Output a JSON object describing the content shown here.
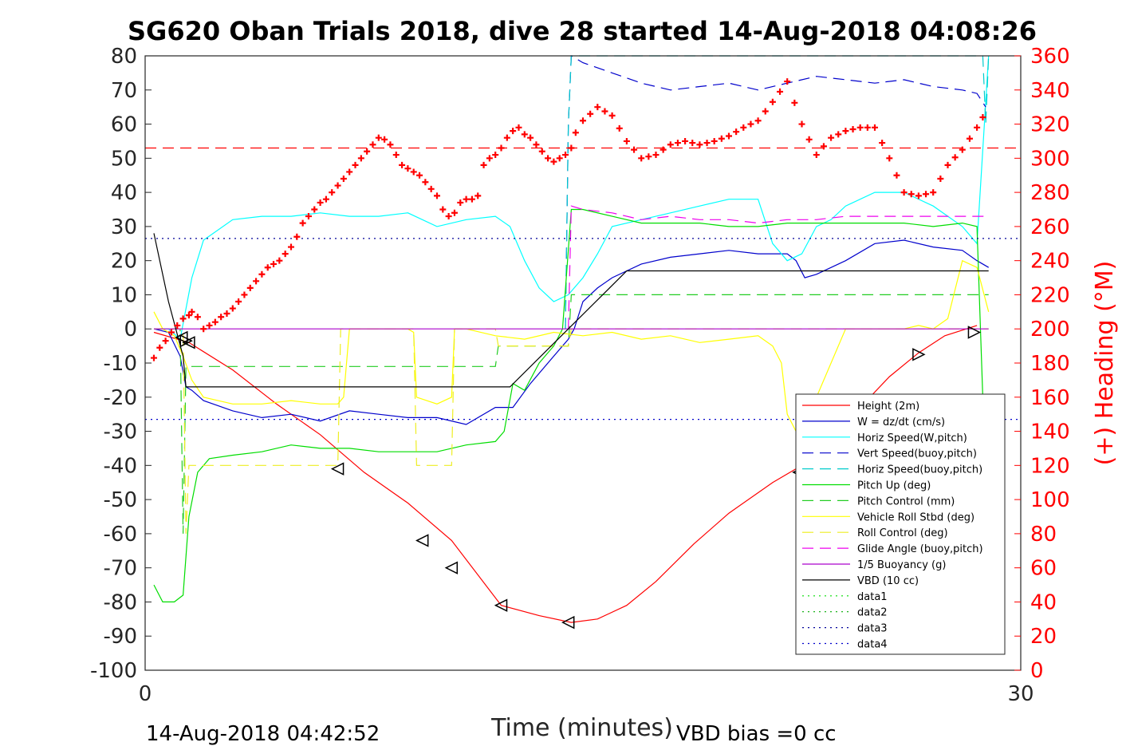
{
  "chart_data": {
    "type": "line",
    "title": "SG620 Oban Trials 2018, dive 28 started 14-Aug-2018 04:08:26",
    "xlabel": "Time (minutes)",
    "ylabel_right": "(+) Heading (°M)",
    "xlim": [
      0,
      30
    ],
    "ylim_left": [
      -100,
      80
    ],
    "ylim_right": [
      0,
      360
    ],
    "x_ticks": [
      "0",
      "30"
    ],
    "y_ticks_left": [
      "80",
      "70",
      "60",
      "50",
      "40",
      "30",
      "20",
      "10",
      "0",
      "-10",
      "-20",
      "-30",
      "-40",
      "-50",
      "-60",
      "-70",
      "-80",
      "-90",
      "-100"
    ],
    "y_ticks_right": [
      "360",
      "340",
      "320",
      "300",
      "280",
      "260",
      "240",
      "220",
      "200",
      "180",
      "160",
      "140",
      "120",
      "100",
      "80",
      "60",
      "40",
      "20",
      "0"
    ],
    "grid": false,
    "legend_position": "bottom-right",
    "footer_left": "14-Aug-2018 04:42:52",
    "footer_right": "VBD bias =0 cc",
    "series": [
      {
        "name": "Height (2m)",
        "color": "#ff0000",
        "style": "solid",
        "x": [
          0.3,
          1.5,
          3,
          4.5,
          6,
          7.5,
          9,
          10.5,
          12.2,
          13.5,
          14.6,
          15.5,
          16.5,
          17.5,
          18.8,
          20,
          21.5,
          22.5,
          23.5,
          24.5,
          25.5,
          26.5,
          27.4,
          28.5
        ],
        "y": [
          -1,
          -4,
          -12,
          -22,
          -31,
          -42,
          -51,
          -62,
          -81,
          -84,
          -86,
          -85,
          -81,
          -74,
          -63,
          -54,
          -45,
          -40,
          -32,
          -23,
          -14,
          -7,
          -2,
          1
        ]
      },
      {
        "name": "W = dz/dt (cm/s)",
        "color": "#0000cc",
        "style": "solid",
        "x": [
          0.3,
          0.8,
          1.2,
          1.4,
          1.6,
          2,
          3,
          4,
          5,
          6,
          7,
          8,
          9,
          10,
          11,
          12,
          12.6,
          13.2,
          14,
          14.5,
          14.7,
          15,
          15.5,
          16,
          17,
          18,
          19,
          20,
          21,
          22,
          22.3,
          22.6,
          23,
          24,
          25,
          26,
          27,
          28,
          28.5,
          28.9
        ],
        "y": [
          0,
          -1,
          -8,
          -17,
          -18,
          -21,
          -24,
          -26,
          -25,
          -27,
          -24,
          -25,
          -26,
          -26,
          -28,
          -23,
          -23,
          -16,
          -8,
          -3,
          0,
          8,
          12,
          15,
          19,
          21,
          22,
          23,
          22,
          22,
          20,
          15,
          16,
          20,
          25,
          26,
          24,
          23,
          20,
          18
        ]
      },
      {
        "name": "Horiz Speed(W,pitch)",
        "color": "#00ffff",
        "style": "solid",
        "x": [
          0.3,
          0.8,
          1.2,
          1.6,
          2,
          3,
          4,
          5,
          6,
          7,
          8,
          9,
          10,
          11,
          12,
          12.5,
          13,
          13.5,
          14,
          14.5,
          15,
          15.5,
          16,
          17,
          18,
          19,
          20,
          21,
          21.5,
          22,
          22.5,
          23,
          23.5,
          24,
          25,
          26,
          27,
          28,
          28.5,
          28.9
        ],
        "y": [
          0,
          0,
          -3,
          15,
          26,
          32,
          33,
          33,
          34,
          33,
          33,
          34,
          30,
          32,
          33,
          30,
          20,
          12,
          8,
          10,
          15,
          22,
          30,
          32,
          34,
          36,
          38,
          38,
          25,
          20,
          22,
          30,
          32,
          36,
          40,
          40,
          36,
          30,
          25,
          80
        ]
      },
      {
        "name": "Vert Speed(buoy,pitch)",
        "color": "#0000cc",
        "style": "dashed",
        "x": [
          14.4,
          14.5,
          14.6,
          15,
          16,
          17,
          18,
          19,
          20,
          21,
          22,
          23,
          24,
          25,
          26,
          27,
          28,
          28.5,
          28.8
        ],
        "y": [
          0,
          60,
          80,
          78,
          75,
          72,
          70,
          71,
          72,
          70,
          72,
          74,
          73,
          72,
          73,
          71,
          70,
          69,
          65
        ]
      },
      {
        "name": "Horiz Speed(buoy,pitch)",
        "color": "#00cccc",
        "style": "dashed",
        "x": [
          14.4,
          14.5,
          14.6,
          28.7,
          28.8,
          28.9
        ],
        "y": [
          0,
          60,
          80,
          80,
          60,
          80
        ]
      },
      {
        "name": "Pitch Up (deg)",
        "color": "#00dd00",
        "style": "solid",
        "x": [
          0.3,
          0.6,
          1,
          1.3,
          1.5,
          1.8,
          2.2,
          3,
          4,
          5,
          6,
          7,
          8,
          9,
          10,
          11,
          12,
          12.3,
          12.6,
          13,
          13.5,
          14,
          14.3,
          14.6,
          15,
          16,
          17,
          18,
          19,
          20,
          21,
          22,
          23,
          24,
          25,
          26,
          27,
          28,
          28.5,
          28.9
        ],
        "y": [
          -75,
          -80,
          -80,
          -78,
          -55,
          -42,
          -38,
          -37,
          -36,
          -34,
          -35,
          -35,
          -36,
          -36,
          -36,
          -34,
          -33,
          -30,
          -16,
          -18,
          -10,
          -5,
          0,
          35,
          35,
          33,
          31,
          31,
          31,
          30,
          30,
          31,
          31,
          31,
          31,
          31,
          30,
          31,
          30,
          -70
        ]
      },
      {
        "name": "Pitch Control (mm)",
        "color": "#22cc22",
        "style": "dashed",
        "x": [
          0.3,
          1.2,
          1.3,
          1.4,
          11,
          12,
          12.1,
          14.5,
          14.6,
          28.9
        ],
        "y": [
          0,
          0,
          -60,
          -11,
          -11,
          -11,
          -5,
          -5,
          10,
          10
        ]
      },
      {
        "name": "Vehicle Roll Stbd (deg)",
        "color": "#ffff00",
        "style": "solid",
        "x": [
          0.3,
          0.6,
          1,
          1.3,
          1.6,
          2,
          3,
          4,
          5,
          6,
          6.6,
          6.8,
          7,
          8,
          9,
          9.2,
          9.3,
          10,
          10.5,
          10.6,
          11,
          12,
          13,
          14,
          15,
          16,
          17,
          18,
          19,
          20,
          21,
          21.5,
          21.8,
          22,
          22.3,
          23,
          24,
          25,
          26,
          26.5,
          27,
          27.5,
          28,
          28.5,
          28.9
        ],
        "y": [
          5,
          0,
          -2,
          -8,
          -15,
          -20,
          -22,
          -22,
          -21,
          -22,
          -22,
          -20,
          0,
          0,
          0,
          -1,
          -20,
          -22,
          -20,
          0,
          0,
          -2,
          -3,
          -1,
          -2,
          -1,
          -3,
          -2,
          -4,
          -3,
          -2,
          -5,
          -10,
          -25,
          -30,
          -20,
          0,
          0,
          0,
          1,
          0,
          3,
          20,
          18,
          5
        ]
      },
      {
        "name": "Roll Control (deg)",
        "color": "#eeee22",
        "style": "dashed",
        "x": [
          0.3,
          1.3,
          1.4,
          1.5,
          6.5,
          6.6,
          6.7,
          9.2,
          9.3,
          10.5,
          10.6,
          12,
          12.1,
          14.5,
          14.6,
          28.9
        ],
        "y": [
          0,
          0,
          -60,
          -40,
          -40,
          -40,
          0,
          0,
          -40,
          -40,
          0,
          0,
          -5,
          -5,
          0,
          0
        ]
      },
      {
        "name": "Glide Angle (buoy,pitch)",
        "color": "#ee00ee",
        "style": "dashed",
        "x": [
          14.5,
          14.6,
          15,
          16,
          17,
          18,
          19,
          20,
          21,
          22,
          23,
          24,
          25,
          26,
          27,
          28,
          28.9
        ],
        "y": [
          0,
          36,
          35,
          34,
          32,
          33,
          32,
          32,
          31,
          32,
          32,
          33,
          33,
          33,
          33,
          33,
          33
        ]
      },
      {
        "name": "1/5 Buoyancy (g)",
        "color": "#aa00cc",
        "style": "solid",
        "x": [
          0.3,
          28.9
        ],
        "y": [
          0,
          0
        ]
      },
      {
        "name": "VBD (10 cc)",
        "color": "#000000",
        "style": "solid",
        "x": [
          0.3,
          0.8,
          1.3,
          1.4,
          12,
          12.5,
          14.5,
          16.5,
          22,
          28.9
        ],
        "y": [
          28,
          8,
          -8,
          -17,
          -17,
          -17,
          0,
          17,
          17,
          17
        ]
      },
      {
        "name": "data1",
        "color": "#00dd00",
        "style": "dotted",
        "x": [],
        "y": []
      },
      {
        "name": "data2",
        "color": "#00aa00",
        "style": "dotted",
        "x": [],
        "y": []
      },
      {
        "name": "data3",
        "color": "#000099",
        "style": "dotted",
        "x": [
          0,
          30
        ],
        "y": [
          26.5,
          26.5
        ]
      },
      {
        "name": "data4",
        "color": "#0000cc",
        "style": "dotted",
        "x": [
          0,
          30
        ],
        "y": [
          -26.5,
          -26.5
        ]
      }
    ],
    "heading": {
      "color": "#ff0000",
      "marker": "+",
      "reference_line": 306,
      "x": [
        0.3,
        0.8,
        1.3,
        1.6,
        2,
        2.5,
        3,
        3.5,
        4,
        4.5,
        5,
        5.5,
        6,
        6.5,
        7,
        7.5,
        8,
        8.5,
        9,
        9.5,
        10,
        10.5,
        11,
        11.5,
        12,
        12.5,
        13,
        13.5,
        14,
        14.5,
        15,
        15.5,
        16,
        16.5,
        17,
        17.5,
        18,
        18.5,
        19,
        19.5,
        20,
        20.5,
        21,
        21.5,
        22,
        22.5,
        23,
        23.5,
        24,
        24.5,
        25,
        25.5,
        26,
        26.5,
        27,
        27.5,
        28,
        28.5,
        28.9
      ],
      "y": [
        183,
        195,
        205,
        212,
        206,
        212,
        222,
        240,
        250,
        262,
        275,
        285,
        293,
        305,
        310,
        300,
        288,
        275,
        290,
        300,
        308,
        302,
        296,
        308,
        322,
        335,
        343,
        330,
        313,
        308,
        322,
        330,
        325,
        310,
        300,
        302,
        308,
        310,
        308,
        310,
        313,
        318,
        322,
        333,
        345,
        320,
        302,
        312,
        316,
        318,
        318,
        300,
        280,
        278,
        280,
        296,
        305,
        318,
        330
      ],
      "cross_markers": [
        [
          0.3,
          183
        ],
        [
          0.5,
          189
        ],
        [
          0.7,
          193
        ],
        [
          0.9,
          198
        ],
        [
          1.1,
          202
        ],
        [
          1.3,
          206
        ],
        [
          1.5,
          208
        ],
        [
          1.6,
          210
        ],
        [
          1.8,
          207
        ],
        [
          2,
          200
        ],
        [
          2.2,
          202
        ],
        [
          2.4,
          204
        ],
        [
          2.6,
          207
        ],
        [
          2.8,
          209
        ],
        [
          3,
          212
        ],
        [
          3.2,
          216
        ],
        [
          3.4,
          220
        ],
        [
          3.6,
          224
        ],
        [
          3.8,
          228
        ],
        [
          4,
          232
        ],
        [
          4.2,
          236
        ],
        [
          4.4,
          238
        ],
        [
          4.6,
          240
        ],
        [
          4.8,
          244
        ],
        [
          5,
          248
        ],
        [
          5.2,
          254
        ],
        [
          5.4,
          262
        ],
        [
          5.6,
          266
        ],
        [
          5.8,
          270
        ],
        [
          6,
          274
        ],
        [
          6.2,
          276
        ],
        [
          6.4,
          280
        ],
        [
          6.6,
          284
        ],
        [
          6.8,
          288
        ],
        [
          7,
          292
        ],
        [
          7.2,
          296
        ],
        [
          7.4,
          300
        ],
        [
          7.6,
          304
        ],
        [
          7.8,
          308
        ],
        [
          8,
          312
        ],
        [
          8.2,
          311
        ],
        [
          8.4,
          308
        ],
        [
          8.6,
          302
        ],
        [
          8.8,
          296
        ],
        [
          9,
          294
        ],
        [
          9.2,
          292
        ],
        [
          9.4,
          290
        ],
        [
          9.6,
          286
        ],
        [
          9.8,
          282
        ],
        [
          10,
          278
        ],
        [
          10.2,
          270
        ],
        [
          10.4,
          266
        ],
        [
          10.6,
          268
        ],
        [
          10.8,
          274
        ],
        [
          11,
          276
        ],
        [
          11.2,
          276
        ],
        [
          11.4,
          278
        ],
        [
          11.6,
          296
        ],
        [
          11.8,
          300
        ],
        [
          12,
          302
        ],
        [
          12.2,
          306
        ],
        [
          12.4,
          312
        ],
        [
          12.6,
          316
        ],
        [
          12.8,
          318
        ],
        [
          13,
          314
        ],
        [
          13.2,
          312
        ],
        [
          13.4,
          308
        ],
        [
          13.6,
          304
        ],
        [
          13.8,
          300
        ],
        [
          14,
          298
        ],
        [
          14.2,
          300
        ],
        [
          14.4,
          302
        ],
        [
          14.6,
          306
        ]
      ]
    },
    "markers": {
      "left_triangles": [
        [
          1.25,
          -2.5
        ],
        [
          1.5,
          -4
        ],
        [
          6.6,
          -41
        ],
        [
          9.5,
          -62
        ],
        [
          10.5,
          -70
        ],
        [
          12.2,
          -81
        ],
        [
          14.5,
          -86
        ]
      ],
      "right_triangles": [
        [
          1.4,
          -3.5
        ],
        [
          26.5,
          -7.5
        ],
        [
          28.4,
          -1
        ]
      ],
      "left_tri_up": [
        [
          22.4,
          -42
        ]
      ]
    }
  }
}
